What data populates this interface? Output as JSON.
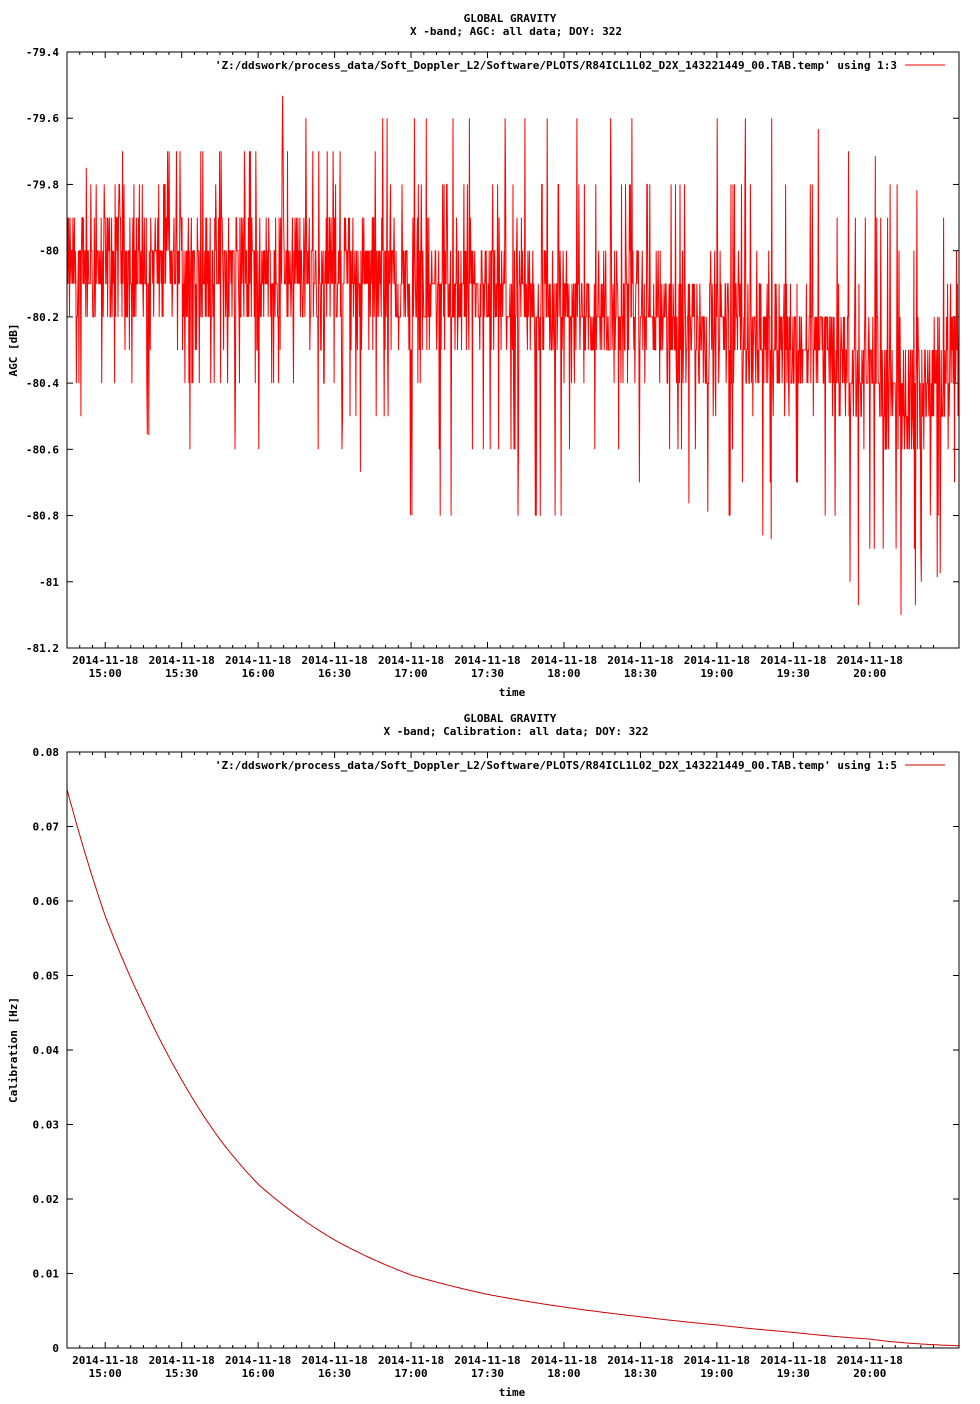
{
  "chart_data": [
    {
      "type": "line",
      "title": "GLOBAL GRAVITY",
      "subtitle": "X -band; AGC: all data; DOY: 322",
      "xlabel": "time",
      "ylabel": "AGC [dB]",
      "ylim": [
        -81.2,
        -79.4
      ],
      "xlim": [
        "2014-11-18 14:45",
        "2014-11-18 20:35"
      ],
      "y_ticks": [
        "-79.4",
        "-79.6",
        "-79.8",
        "-80",
        "-80.2",
        "-80.4",
        "-80.6",
        "-80.8",
        "-81",
        "-81.2"
      ],
      "x_tick_dates": [
        "2014-11-18",
        "2014-11-18",
        "2014-11-18",
        "2014-11-18",
        "2014-11-18",
        "2014-11-18",
        "2014-11-18",
        "2014-11-18",
        "2014-11-18",
        "2014-11-18",
        "2014-11-18"
      ],
      "x_tick_times": [
        "15:00",
        "15:30",
        "16:00",
        "16:30",
        "17:00",
        "17:30",
        "18:00",
        "18:30",
        "19:00",
        "19:30",
        "20:00"
      ],
      "legend": "top-right",
      "series": [
        {
          "name": "'Z:/ddswork/process_data/Soft_Doppler_L2/Software/PLOTS/R84ICL1L02_D2X_143221449_00.TAB.temp' using 1:3",
          "color": "#ff0000",
          "x": [
            "14:45",
            "15:00",
            "15:30",
            "16:00",
            "16:30",
            "17:00",
            "17:30",
            "18:00",
            "18:30",
            "19:00",
            "19:30",
            "20:00",
            "20:15",
            "20:35"
          ],
          "mean": [
            -80.05,
            -80.05,
            -80.05,
            -80.05,
            -80.07,
            -80.12,
            -80.15,
            -80.17,
            -80.2,
            -80.23,
            -80.27,
            -80.35,
            -80.45,
            -80.3
          ],
          "max": [
            -79.8,
            -79.7,
            -79.6,
            -79.5,
            -79.6,
            -79.6,
            -79.6,
            -79.6,
            -79.6,
            -79.6,
            -79.6,
            -79.7,
            -79.8,
            -79.9
          ],
          "min": [
            -80.5,
            -80.5,
            -80.6,
            -80.6,
            -80.6,
            -80.8,
            -80.8,
            -80.8,
            -80.7,
            -80.8,
            -80.9,
            -81.1,
            -81.1,
            -80.9
          ]
        }
      ]
    },
    {
      "type": "line",
      "title": "GLOBAL GRAVITY",
      "subtitle": "X -band; Calibration: all data; DOY: 322",
      "xlabel": "time",
      "ylabel": "Calibration [Hz]",
      "ylim": [
        0,
        0.08
      ],
      "xlim": [
        "2014-11-18 14:45",
        "2014-11-18 20:35"
      ],
      "y_ticks": [
        "0",
        "0.01",
        "0.02",
        "0.03",
        "0.04",
        "0.05",
        "0.06",
        "0.07",
        "0.08"
      ],
      "x_tick_dates": [
        "2014-11-18",
        "2014-11-18",
        "2014-11-18",
        "2014-11-18",
        "2014-11-18",
        "2014-11-18",
        "2014-11-18",
        "2014-11-18",
        "2014-11-18",
        "2014-11-18",
        "2014-11-18"
      ],
      "x_tick_times": [
        "15:00",
        "15:30",
        "16:00",
        "16:30",
        "17:00",
        "17:30",
        "18:00",
        "18:30",
        "19:00",
        "19:30",
        "20:00"
      ],
      "legend": "top-right",
      "series": [
        {
          "name": "'Z:/ddswork/process_data/Soft_Doppler_L2/Software/PLOTS/R84ICL1L02_D2X_143221449_00.TAB.temp' using 1:5",
          "color": "#cc0000",
          "x": [
            "14:45",
            "15:00",
            "15:15",
            "15:30",
            "15:45",
            "16:00",
            "16:30",
            "17:00",
            "17:30",
            "18:00",
            "18:30",
            "19:00",
            "19:30",
            "20:00",
            "20:35"
          ],
          "values": [
            0.075,
            0.058,
            0.046,
            0.036,
            0.028,
            0.022,
            0.0145,
            0.0098,
            0.0072,
            0.0055,
            0.0042,
            0.0031,
            0.0021,
            0.0012,
            0.0003
          ]
        }
      ]
    }
  ]
}
